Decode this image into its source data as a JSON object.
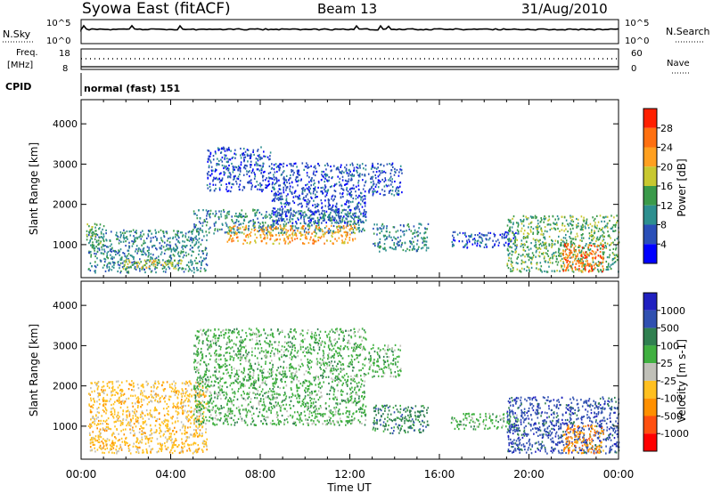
{
  "header": {
    "station": "Syowa East (fitACF)",
    "beam": "Beam 13",
    "date": "31/Aug/2010"
  },
  "top_panels": {
    "nsky_label": "N.Sky",
    "nsky_hi": "10^5",
    "nsky_lo": "10^0",
    "nsearch_label": "N.Search",
    "freq_label_1": "Freq.",
    "freq_label_2": "[MHz]",
    "freq_hi": "18",
    "freq_lo": "8",
    "nave_label": "Nave",
    "nave_hi": "60",
    "nave_lo": "0",
    "cpid_label": "CPID",
    "cpid_value": "normal (fast) 151"
  },
  "chart_data": [
    {
      "type": "heatmap",
      "panel": "power",
      "ylabel": "Slant Range [km]",
      "xlabel": "",
      "xlim": [
        "00:00",
        "24:00"
      ],
      "ylim": [
        180,
        4600
      ],
      "yticks": [
        "1000",
        "2000",
        "3000",
        "4000"
      ],
      "colorbar": {
        "label": "Power [dB]",
        "ticks": [
          "4",
          "8",
          "12",
          "16",
          "20",
          "24",
          "28"
        ],
        "range": [
          0,
          32
        ],
        "colors": [
          "#0000ff",
          "#2a4fb8",
          "#2d8f8f",
          "#3a9a4a",
          "#c8c830",
          "#ffa020",
          "#ff7010",
          "#ff2000"
        ]
      },
      "regions": [
        {
          "t0": 0.3,
          "t1": 5.6,
          "r0": 280,
          "r1": 1350,
          "level": 2
        },
        {
          "t0": 1.8,
          "t1": 4.5,
          "r0": 380,
          "r1": 600,
          "level": 4
        },
        {
          "t0": 0.2,
          "t1": 1.0,
          "r0": 900,
          "r1": 1500,
          "level": 3
        },
        {
          "t0": 5.0,
          "t1": 12.7,
          "r0": 1250,
          "r1": 1850,
          "level": 2
        },
        {
          "t0": 6.5,
          "t1": 12.3,
          "r0": 1000,
          "r1": 1450,
          "level": 5
        },
        {
          "t0": 5.6,
          "t1": 8.5,
          "r0": 2300,
          "r1": 3400,
          "level": 1
        },
        {
          "t0": 8.5,
          "t1": 12.7,
          "r0": 1500,
          "r1": 3000,
          "level": 1
        },
        {
          "t0": 12.8,
          "t1": 14.3,
          "r0": 2200,
          "r1": 3000,
          "level": 1
        },
        {
          "t0": 13.0,
          "t1": 15.5,
          "r0": 800,
          "r1": 1500,
          "level": 2
        },
        {
          "t0": 16.5,
          "t1": 19.5,
          "r0": 900,
          "r1": 1300,
          "level": 1
        },
        {
          "t0": 19.0,
          "t1": 24.0,
          "r0": 300,
          "r1": 1700,
          "level": 3
        },
        {
          "t0": 21.5,
          "t1": 23.3,
          "r0": 300,
          "r1": 1000,
          "level": 6
        }
      ]
    },
    {
      "type": "heatmap",
      "panel": "velocity",
      "ylabel": "Slant Range [km]",
      "xlabel": "Time UT",
      "xlim": [
        "00:00",
        "24:00"
      ],
      "ylim": [
        180,
        4600
      ],
      "xticks": [
        "00:00",
        "04:00",
        "08:00",
        "12:00",
        "16:00",
        "20:00",
        "00:00"
      ],
      "yticks": [
        "1000",
        "2000",
        "3000",
        "4000"
      ],
      "colorbar": {
        "label": "Velocity [m s-1]",
        "ticks": [
          "1000",
          "500",
          "100",
          "25",
          "-25",
          "-100",
          "-500",
          "-1000"
        ],
        "colors": [
          "#2020c0",
          "#3050b0",
          "#308050",
          "#40b040",
          "#c0c0b8",
          "#ffc020",
          "#ff9000",
          "#ff5010",
          "#ff0000"
        ]
      },
      "regions": [
        {
          "t0": 0.3,
          "t1": 5.6,
          "r0": 300,
          "r1": 2100,
          "class": "-100"
        },
        {
          "t0": 5.0,
          "t1": 12.7,
          "r0": 1000,
          "r1": 3400,
          "class": "25"
        },
        {
          "t0": 12.8,
          "t1": 14.3,
          "r0": 2200,
          "r1": 3000,
          "class": "25"
        },
        {
          "t0": 13.0,
          "t1": 15.5,
          "r0": 800,
          "r1": 1500,
          "class": "100"
        },
        {
          "t0": 16.5,
          "t1": 19.5,
          "r0": 900,
          "r1": 1300,
          "class": "25"
        },
        {
          "t0": 19.0,
          "t1": 24.0,
          "r0": 300,
          "r1": 1700,
          "class": "500"
        },
        {
          "t0": 21.5,
          "t1": 23.3,
          "r0": 300,
          "r1": 1000,
          "class": "-500"
        }
      ]
    }
  ]
}
